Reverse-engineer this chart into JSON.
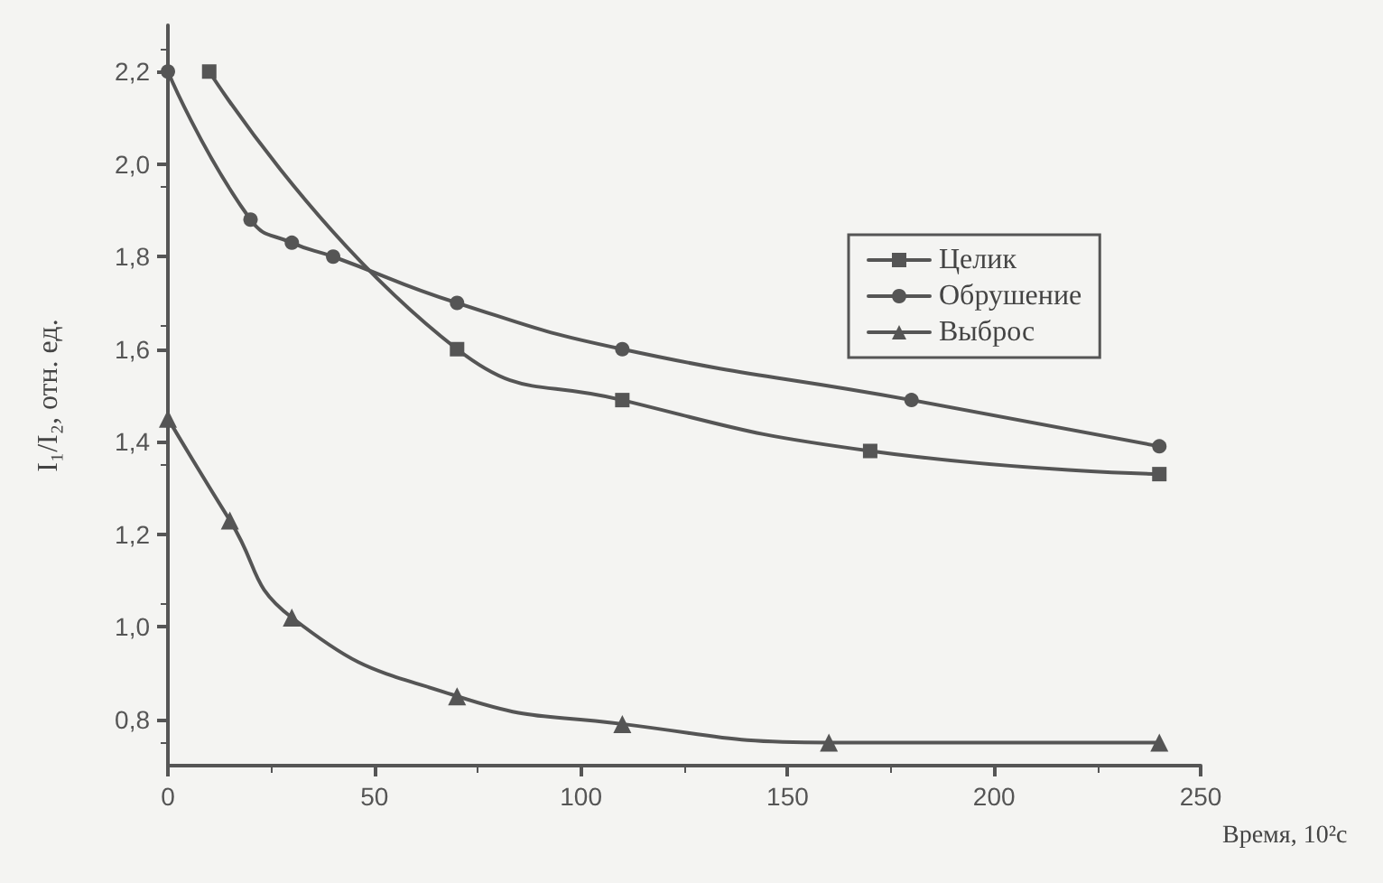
{
  "chart_data": {
    "type": "line",
    "xlabel": "Время, 10²с",
    "ylabel": "I₁/I₂, отн. ед.",
    "xlim": [
      0,
      250
    ],
    "xticks": [
      0,
      50,
      100,
      150,
      200,
      250
    ],
    "ylim": [
      0.7,
      2.3
    ],
    "yticks": [
      {
        "value": 0.8,
        "label": "0,8"
      },
      {
        "value": 1.0,
        "label": "1,0"
      },
      {
        "value": 1.2,
        "label": "1,2"
      },
      {
        "value": 1.4,
        "label": "1,4"
      },
      {
        "value": 1.6,
        "label": "1,6"
      },
      {
        "value": 1.8,
        "label": "1,8"
      },
      {
        "value": 2.0,
        "label": "2,0"
      },
      {
        "value": 2.2,
        "label": "2,2"
      }
    ],
    "grid": false,
    "legend": "top right",
    "line_style": "solid",
    "series": [
      {
        "name": "Целик",
        "color": "#555555",
        "marker": "square",
        "x": [
          10,
          70,
          110,
          170,
          240
        ],
        "values": [
          2.2,
          1.6,
          1.49,
          1.38,
          1.33
        ]
      },
      {
        "name": "Обрушение",
        "color": "#555555",
        "marker": "circle",
        "x": [
          0,
          20,
          30,
          40,
          70,
          110,
          180,
          240
        ],
        "values": [
          2.2,
          1.88,
          1.83,
          1.8,
          1.7,
          1.6,
          1.49,
          1.39
        ]
      },
      {
        "name": "Выброс",
        "color": "#555555",
        "marker": "triangle",
        "x": [
          0,
          15,
          30,
          70,
          110,
          160,
          240
        ],
        "values": [
          1.45,
          1.23,
          1.02,
          0.85,
          0.79,
          0.75,
          0.75
        ]
      }
    ]
  }
}
